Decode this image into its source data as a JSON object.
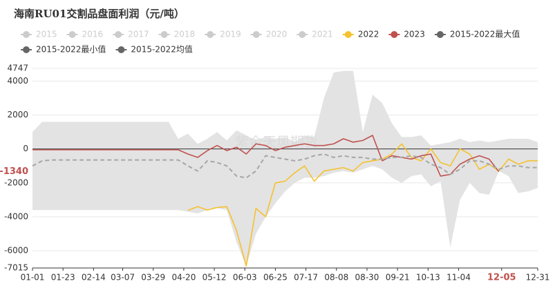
{
  "chart_data": {
    "type": "line",
    "title": "海南RU01交割品盘面利润（元/吨）",
    "watermark": "紫金天风期货",
    "x": [
      1,
      8,
      15,
      22,
      29,
      36,
      43,
      50,
      57,
      64,
      71,
      78,
      85,
      92,
      99,
      106,
      113,
      120,
      127,
      134,
      141,
      148,
      155,
      162,
      169,
      176,
      183,
      190,
      197,
      204,
      211,
      218,
      225,
      232,
      239,
      246,
      253,
      260,
      267,
      274,
      281,
      288,
      295,
      302,
      309,
      316,
      323,
      330,
      337,
      344,
      351,
      358,
      365
    ],
    "xlim": [
      1,
      365
    ],
    "xticks": [
      {
        "value": 1,
        "label": "01-01"
      },
      {
        "value": 23,
        "label": "01-23"
      },
      {
        "value": 45,
        "label": "02-14"
      },
      {
        "value": 66,
        "label": "03-07"
      },
      {
        "value": 88,
        "label": "03-29"
      },
      {
        "value": 110,
        "label": "04-20"
      },
      {
        "value": 132,
        "label": "05-12"
      },
      {
        "value": 154,
        "label": "06-03"
      },
      {
        "value": 176,
        "label": "06-25"
      },
      {
        "value": 198,
        "label": "07-17"
      },
      {
        "value": 220,
        "label": "08-08"
      },
      {
        "value": 242,
        "label": "08-30"
      },
      {
        "value": 264,
        "label": "09-21"
      },
      {
        "value": 286,
        "label": "10-13"
      },
      {
        "value": 308,
        "label": "11-04"
      },
      {
        "value": 339,
        "label": "12-05"
      },
      {
        "value": 365,
        "label": "12-31"
      }
    ],
    "x_pointer_tick": 15,
    "ylim": [
      -7015,
      4747
    ],
    "yticks": [
      4747,
      4000,
      2000,
      0,
      -2000,
      -4000,
      -6000,
      -7015
    ],
    "y_pointer": -1340,
    "pointer_color": "#c0504d",
    "grid": true,
    "hidden_series": [
      {
        "name": "2015"
      },
      {
        "name": "2016"
      },
      {
        "name": "2017"
      },
      {
        "name": "2018"
      },
      {
        "name": "2019"
      },
      {
        "name": "2020"
      },
      {
        "name": "2021"
      }
    ],
    "hidden_color": "#cccccc",
    "series": [
      {
        "name": "2022",
        "color": "#f5c12e",
        "values": [
          null,
          null,
          null,
          null,
          null,
          null,
          null,
          null,
          null,
          null,
          null,
          null,
          null,
          null,
          null,
          null,
          -3620,
          -3400,
          -3600,
          -3450,
          -3400,
          -4800,
          -6900,
          -3500,
          -4000,
          -2000,
          -1900,
          -1400,
          -1000,
          -1900,
          -1300,
          -1200,
          -1100,
          -1300,
          -800,
          -700,
          -600,
          -300,
          300,
          -500,
          -700,
          0,
          -800,
          -1000,
          0,
          -300,
          -1200,
          -900,
          -1300,
          -600,
          -900,
          -700,
          -700
        ]
      },
      {
        "name": "2023",
        "color": "#c0504d",
        "values": [
          -50,
          -50,
          -50,
          -50,
          -50,
          -50,
          -50,
          -50,
          -50,
          -50,
          -50,
          -50,
          -50,
          -50,
          -50,
          -50,
          -300,
          -500,
          -100,
          200,
          -100,
          100,
          -300,
          300,
          200,
          -100,
          100,
          200,
          300,
          200,
          200,
          300,
          600,
          400,
          500,
          800,
          -700,
          -400,
          -500,
          -600,
          -400,
          -300,
          -1600,
          -1500,
          -900,
          -600,
          -400,
          -600,
          -1340,
          null,
          null,
          null,
          null
        ]
      },
      {
        "name": "2015-2022最大值",
        "color": "#666666",
        "fill": "#e3e3e3",
        "role": "band-top",
        "values": [
          1000,
          1600,
          1600,
          1600,
          1600,
          1600,
          1600,
          1600,
          1600,
          1600,
          1600,
          1600,
          1600,
          1600,
          1600,
          600,
          900,
          300,
          600,
          1000,
          500,
          1100,
          800,
          500,
          700,
          600,
          700,
          400,
          800,
          700,
          3000,
          4500,
          4600,
          4600,
          1000,
          3200,
          2700,
          1500,
          700,
          700,
          800,
          200,
          300,
          400,
          600,
          400,
          500,
          400,
          500,
          600,
          600,
          600,
          400
        ]
      },
      {
        "name": "2015-2022最小值",
        "color": "#666666",
        "fill": "#e3e3e3",
        "role": "band-bottom",
        "values": [
          -3600,
          -3600,
          -3600,
          -3600,
          -3600,
          -3600,
          -3600,
          -3600,
          -3600,
          -3600,
          -3600,
          -3600,
          -3600,
          -3600,
          -3600,
          -3600,
          -3700,
          -3800,
          -3600,
          -3500,
          -3600,
          -5500,
          -6900,
          -5000,
          -4000,
          -3200,
          -2500,
          -2000,
          -1700,
          -1700,
          -1600,
          -1400,
          -1300,
          -1400,
          -1200,
          -1000,
          -1200,
          -1700,
          -2000,
          -1600,
          -1500,
          -2200,
          -1900,
          -5800,
          -3000,
          -2000,
          -2600,
          -2700,
          -1300,
          -1600,
          -2600,
          -2500,
          -2300
        ]
      },
      {
        "name": "2015-2022均值",
        "color": "#666666",
        "stroke": "#a6a6a6",
        "dashed": true,
        "values": [
          -1000,
          -700,
          -650,
          -650,
          -650,
          -650,
          -650,
          -650,
          -650,
          -650,
          -650,
          -650,
          -650,
          -650,
          -650,
          -650,
          -1000,
          -1300,
          -700,
          -800,
          -1000,
          -1600,
          -1700,
          -1300,
          -400,
          -500,
          -600,
          -700,
          -600,
          -400,
          -300,
          -500,
          -400,
          -500,
          -500,
          -600,
          -600,
          -500,
          -500,
          -400,
          -500,
          -900,
          -1100,
          -1500,
          -1200,
          -700,
          -700,
          -900,
          -1200,
          -1000,
          -1000,
          -1100,
          -1100
        ]
      }
    ]
  }
}
